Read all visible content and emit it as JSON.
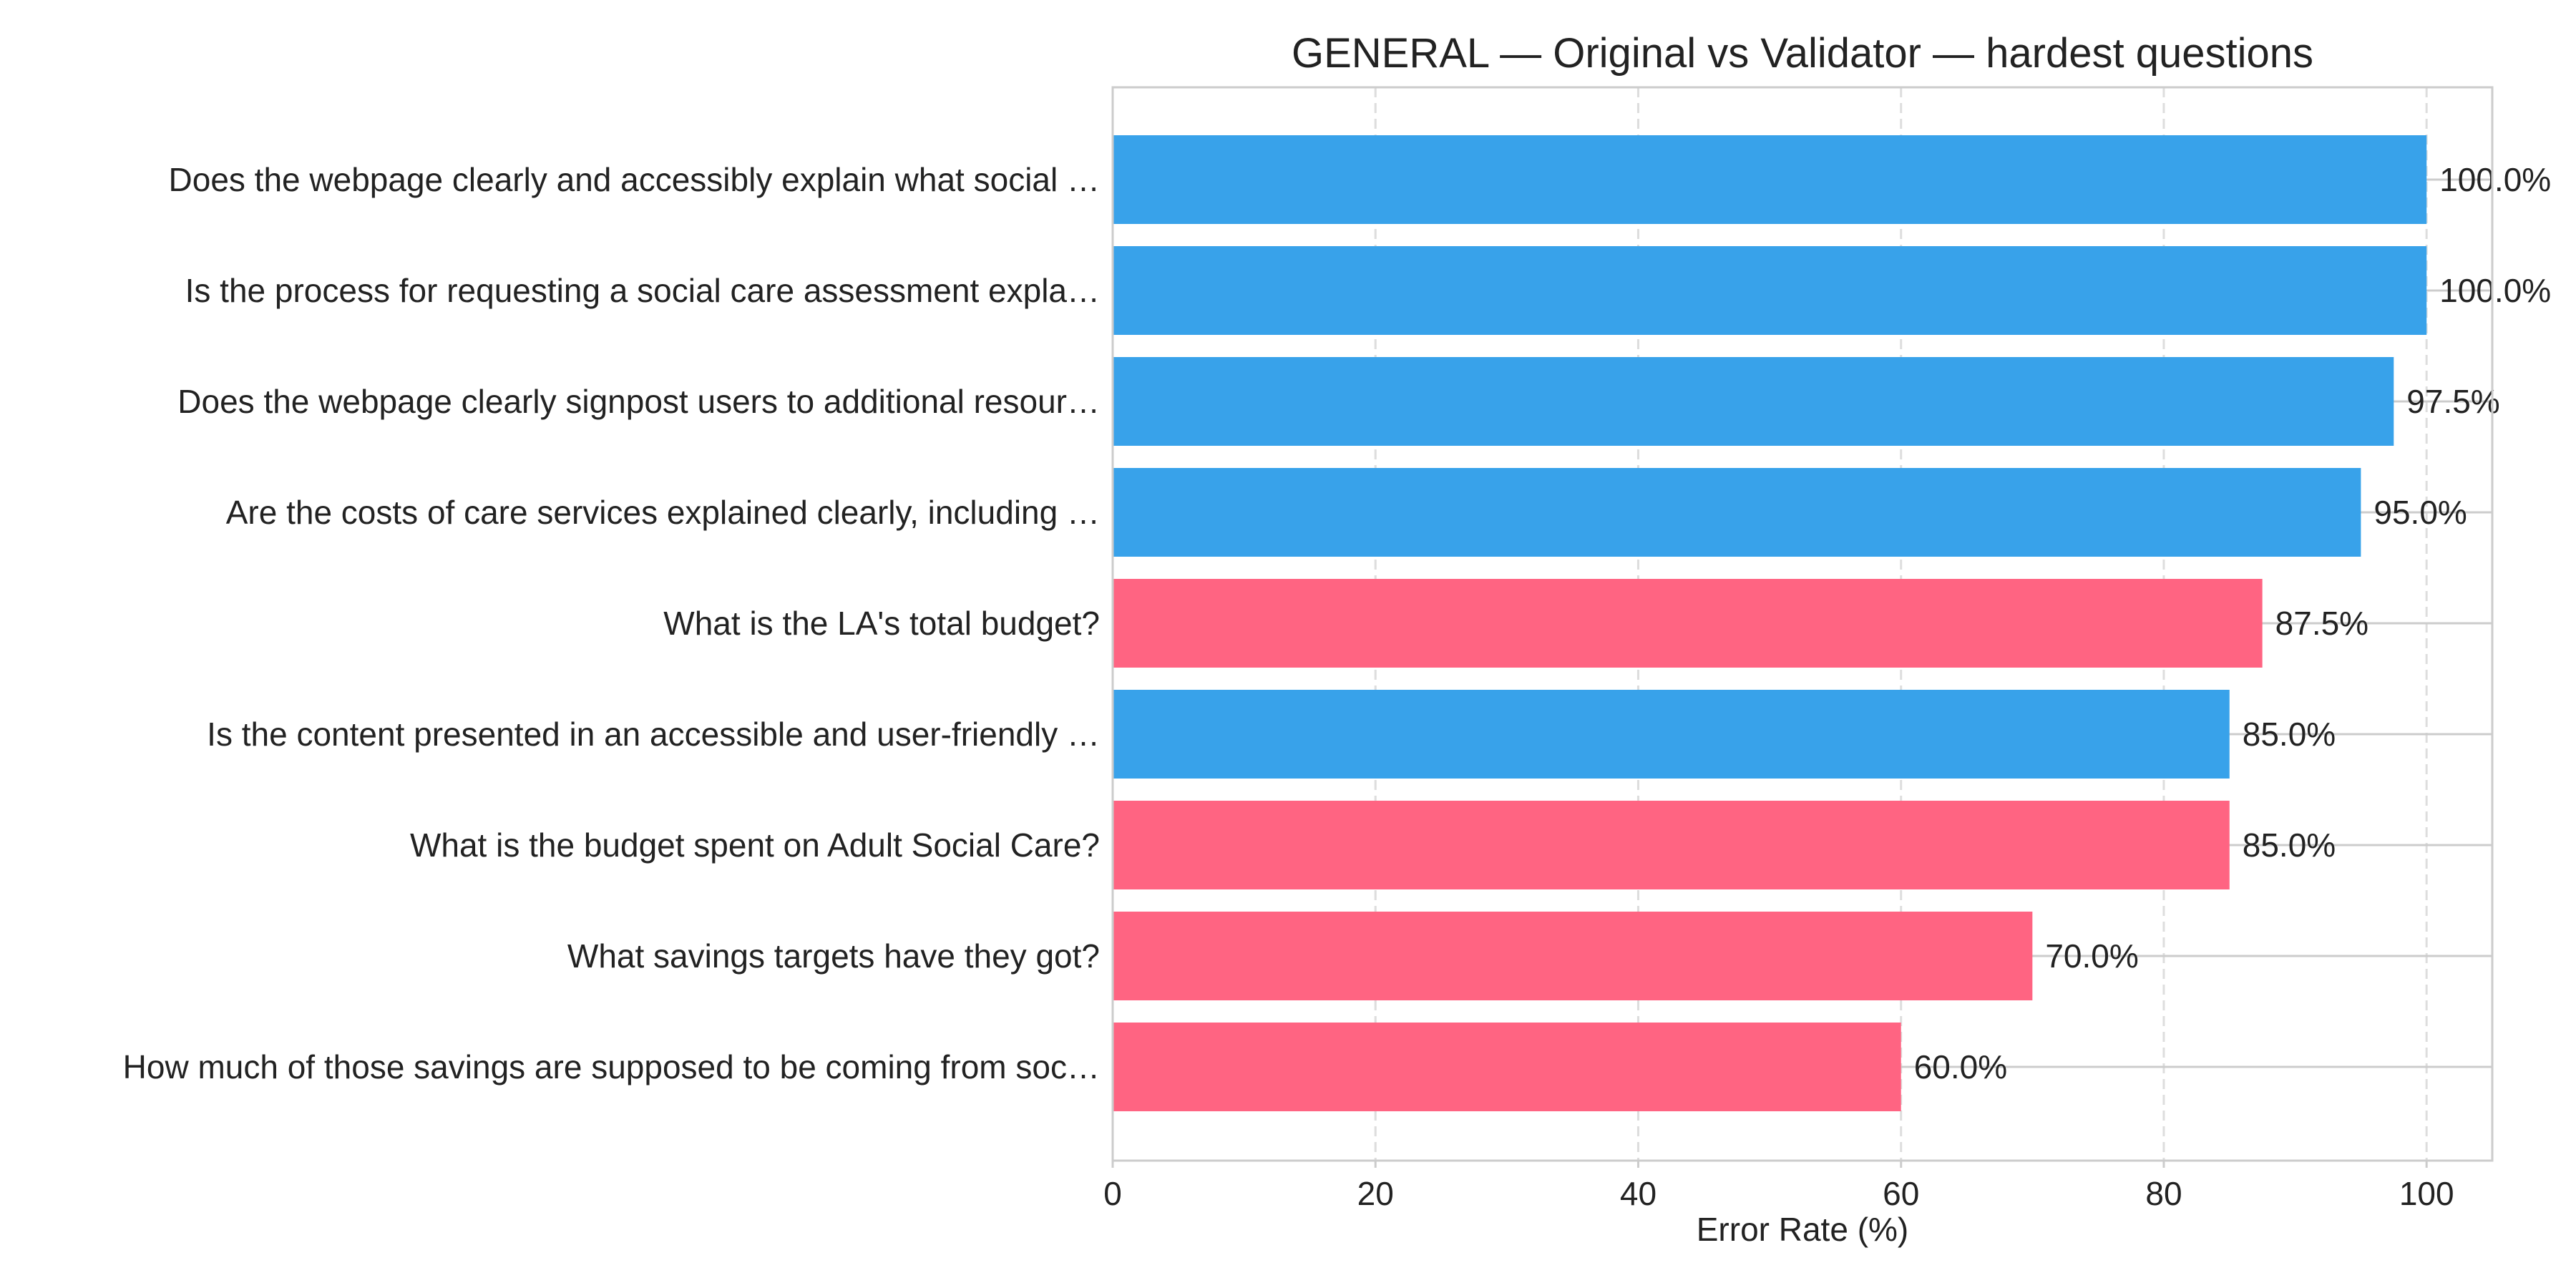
{
  "chart_data": {
    "type": "bar",
    "orientation": "horizontal",
    "title": "GENERAL — Original vs Validator — hardest questions",
    "xlabel": "Error Rate (%)",
    "ylabel": "",
    "xlim": [
      0,
      105
    ],
    "xticks": [
      "0",
      "20",
      "40",
      "60",
      "80",
      "100"
    ],
    "grid": true,
    "colors": {
      "blue": "#38a2ea",
      "pink": "#ff6482"
    },
    "categories": [
      "Does the webpage clearly and accessibly explain what social …",
      "Is the process for requesting a social care assessment expla…",
      "Does the webpage clearly signpost users to additional resour…",
      "Are the costs of care services explained clearly, including …",
      "What is the LA's total budget?",
      "Is the content presented in an accessible and user-friendly …",
      "What is the budget spent on Adult Social Care?",
      "What savings targets have they got?",
      "How much of those savings are supposed to be coming from soc…"
    ],
    "values": [
      100.0,
      100.0,
      97.5,
      95.0,
      87.5,
      85.0,
      85.0,
      70.0,
      60.0
    ],
    "value_labels": [
      "100.0%",
      "100.0%",
      "97.5%",
      "95.0%",
      "87.5%",
      "85.0%",
      "85.0%",
      "70.0%",
      "60.0%"
    ],
    "bar_colors": [
      "blue",
      "blue",
      "blue",
      "blue",
      "pink",
      "blue",
      "pink",
      "pink",
      "pink"
    ]
  }
}
